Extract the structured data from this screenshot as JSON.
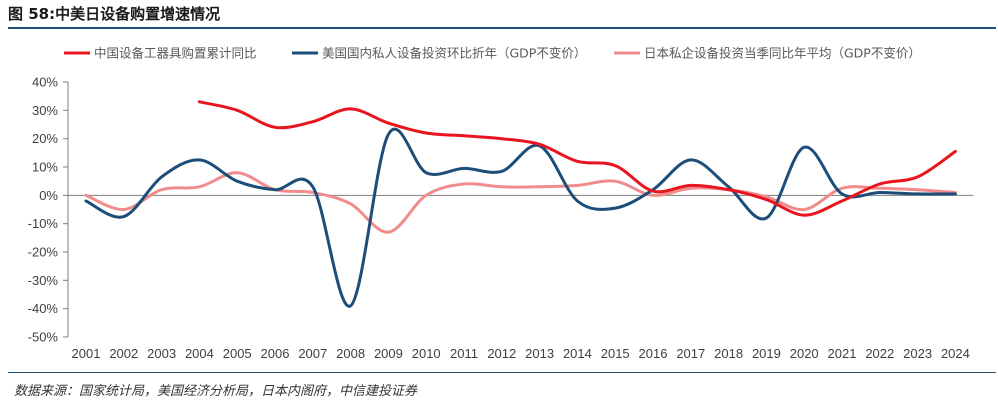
{
  "title": "图 58:中美日设备购置增速情况",
  "source": "数据来源：国家统计局，美国经济分析局，日本内阁府，中信建投证券",
  "chart_data": {
    "type": "line",
    "title": "图 58:中美日设备购置增速情况",
    "xlabel": "",
    "ylabel": "",
    "ylim": [
      -50,
      40
    ],
    "ytick_step": 10,
    "ytick_suffix": "%",
    "grid": false,
    "legend_position": "top",
    "categories": [
      "2001",
      "2002",
      "2003",
      "2004",
      "2005",
      "2006",
      "2007",
      "2008",
      "2009",
      "2010",
      "2011",
      "2012",
      "2013",
      "2014",
      "2015",
      "2016",
      "2017",
      "2018",
      "2019",
      "2020",
      "2021",
      "2022",
      "2023",
      "2024"
    ],
    "series": [
      {
        "name": "中国设备工器具购置累计同比",
        "color": "#e8151e",
        "values": [
          null,
          null,
          null,
          33,
          30,
          24,
          26,
          30.5,
          25.5,
          22,
          21,
          20,
          18,
          12,
          10.5,
          1.5,
          3.5,
          2,
          -1.5,
          -7,
          -2,
          4,
          6.5,
          15.5
        ]
      },
      {
        "name": "美国国内私人设备投资环比折年（GDP不变价）",
        "color": "#1d4e79",
        "values": [
          -2,
          -7.5,
          6.5,
          12.5,
          5,
          2,
          3,
          -39,
          21.5,
          8,
          9.5,
          8.5,
          17.5,
          -2,
          -4.5,
          2,
          12.5,
          3,
          -8,
          17,
          0.5,
          1,
          0.5,
          0.5
        ]
      },
      {
        "name": "日本私企设备投资当季同比年平均（GDP不变价）",
        "color": "#f08c8c",
        "values": [
          0,
          -5,
          2,
          3,
          8,
          2,
          1,
          -3,
          -13,
          0,
          4,
          3,
          3,
          3.5,
          5,
          0,
          2.5,
          2,
          -0.5,
          -5,
          2.5,
          2.5,
          2,
          1
        ]
      }
    ]
  }
}
